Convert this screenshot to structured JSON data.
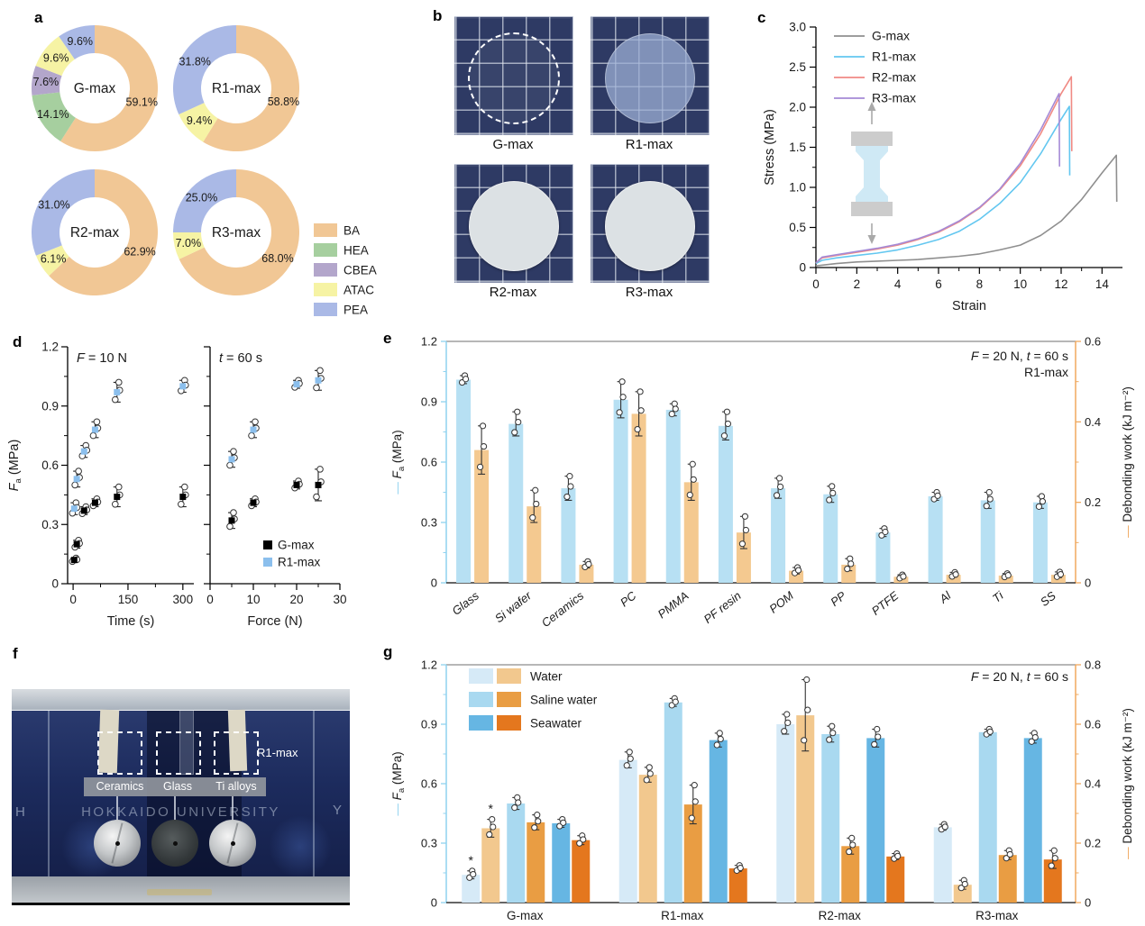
{
  "panels": {
    "a": {
      "label": "a"
    },
    "b": {
      "label": "b",
      "photos": [
        {
          "name": "G-max",
          "disc": "dashed"
        },
        {
          "name": "R1-max",
          "disc": "translucent"
        },
        {
          "name": "R2-max",
          "disc": "opaque"
        },
        {
          "name": "R3-max",
          "disc": "opaque"
        }
      ]
    },
    "c": {
      "label": "c"
    },
    "d": {
      "label": "d"
    },
    "e": {
      "label": "e"
    },
    "f": {
      "label": "f",
      "annotation": "R1-max",
      "substrate_labels": [
        "Ceramics",
        "Glass",
        "Ti alloys"
      ],
      "watermark": "HOKKAIDO UNIVERSITY",
      "edge_left": "H",
      "edge_right": "Y"
    },
    "g": {
      "label": "g"
    }
  },
  "chart_data": [
    {
      "id": "a",
      "type": "pie",
      "style": "donut",
      "legend": [
        {
          "label": "BA",
          "color": "#f1c795"
        },
        {
          "label": "HEA",
          "color": "#a6cf9f"
        },
        {
          "label": "CBEA",
          "color": "#b3a6cb"
        },
        {
          "label": "ATAC",
          "color": "#f6f3a4"
        },
        {
          "label": "PEA",
          "color": "#aab9e6"
        }
      ],
      "donuts": [
        {
          "name": "G-max",
          "slices": [
            {
              "key": "BA",
              "pct": 59.1
            },
            {
              "key": "HEA",
              "pct": 14.1
            },
            {
              "key": "CBEA",
              "pct": 7.6
            },
            {
              "key": "ATAC",
              "pct": 9.6
            },
            {
              "key": "PEA",
              "pct": 9.6
            }
          ]
        },
        {
          "name": "R1-max",
          "slices": [
            {
              "key": "BA",
              "pct": 58.8
            },
            {
              "key": "ATAC",
              "pct": 9.4
            },
            {
              "key": "PEA",
              "pct": 31.8
            }
          ]
        },
        {
          "name": "R2-max",
          "slices": [
            {
              "key": "BA",
              "pct": 62.9
            },
            {
              "key": "ATAC",
              "pct": 6.1
            },
            {
              "key": "PEA",
              "pct": 31.0
            }
          ]
        },
        {
          "name": "R3-max",
          "slices": [
            {
              "key": "BA",
              "pct": 68.0
            },
            {
              "key": "ATAC",
              "pct": 7.0
            },
            {
              "key": "PEA",
              "pct": 25.0
            }
          ]
        }
      ]
    },
    {
      "id": "c",
      "type": "line",
      "xlabel": "Strain",
      "ylabel": "Stress (MPa)",
      "xlim": [
        0,
        15
      ],
      "ylim": [
        0,
        3
      ],
      "xticks": [
        0,
        2,
        4,
        6,
        8,
        10,
        12,
        14
      ],
      "yticks": [
        0,
        0.5,
        1.0,
        1.5,
        2.0,
        2.5,
        3.0
      ],
      "series": [
        {
          "name": "G-max",
          "color": "#8f8f8f",
          "points": [
            [
              0,
              0.02
            ],
            [
              1,
              0.05
            ],
            [
              2,
              0.07
            ],
            [
              3,
              0.08
            ],
            [
              4,
              0.09
            ],
            [
              5,
              0.1
            ],
            [
              6,
              0.12
            ],
            [
              7,
              0.14
            ],
            [
              8,
              0.17
            ],
            [
              9,
              0.22
            ],
            [
              10,
              0.28
            ],
            [
              11,
              0.4
            ],
            [
              12,
              0.58
            ],
            [
              13,
              0.85
            ],
            [
              14,
              1.18
            ],
            [
              14.7,
              1.4
            ],
            [
              14.72,
              0.82
            ]
          ]
        },
        {
          "name": "R1-max",
          "color": "#63c7f0",
          "points": [
            [
              0,
              0.05
            ],
            [
              0.3,
              0.09
            ],
            [
              1,
              0.12
            ],
            [
              2,
              0.15
            ],
            [
              3,
              0.18
            ],
            [
              4,
              0.22
            ],
            [
              5,
              0.28
            ],
            [
              6,
              0.35
            ],
            [
              7,
              0.45
            ],
            [
              8,
              0.6
            ],
            [
              9,
              0.8
            ],
            [
              10,
              1.06
            ],
            [
              11,
              1.42
            ],
            [
              12,
              1.85
            ],
            [
              12.4,
              2.01
            ],
            [
              12.42,
              1.15
            ]
          ]
        },
        {
          "name": "R2-max",
          "color": "#f08a84",
          "points": [
            [
              0,
              0.06
            ],
            [
              0.3,
              0.12
            ],
            [
              1,
              0.15
            ],
            [
              2,
              0.19
            ],
            [
              3,
              0.23
            ],
            [
              4,
              0.28
            ],
            [
              5,
              0.35
            ],
            [
              6,
              0.44
            ],
            [
              7,
              0.57
            ],
            [
              8,
              0.74
            ],
            [
              9,
              0.97
            ],
            [
              10,
              1.27
            ],
            [
              11,
              1.67
            ],
            [
              12,
              2.17
            ],
            [
              12.5,
              2.38
            ],
            [
              12.52,
              1.45
            ]
          ]
        },
        {
          "name": "R3-max",
          "color": "#a58ad6",
          "points": [
            [
              0,
              0.06
            ],
            [
              0.3,
              0.13
            ],
            [
              1,
              0.16
            ],
            [
              2,
              0.2
            ],
            [
              3,
              0.24
            ],
            [
              4,
              0.29
            ],
            [
              5,
              0.36
            ],
            [
              6,
              0.45
            ],
            [
              7,
              0.58
            ],
            [
              8,
              0.75
            ],
            [
              9,
              0.98
            ],
            [
              10,
              1.3
            ],
            [
              11,
              1.72
            ],
            [
              11.9,
              2.17
            ],
            [
              11.92,
              1.26
            ]
          ]
        }
      ]
    },
    {
      "id": "d",
      "type": "scatter",
      "ylabel": "Fa (MPa)",
      "ylim": [
        0,
        1.2
      ],
      "yticks": [
        0,
        0.3,
        0.6,
        0.9,
        1.2
      ],
      "legend": [
        {
          "name": "G-max",
          "color": "#000000"
        },
        {
          "name": "R1-max",
          "color": "#8bbfed"
        }
      ],
      "subplots": [
        {
          "annotation": "F = 10 N",
          "xlabel": "Time (s)",
          "xlim": [
            -15,
            330
          ],
          "xticks": [
            0,
            150,
            300
          ],
          "series": [
            {
              "name": "G-max",
              "color": "#000000",
              "points": [
                {
                  "x": 3,
                  "y": 0.12,
                  "e": 0.01
                },
                {
                  "x": 10,
                  "y": 0.2,
                  "e": 0.02
                },
                {
                  "x": 30,
                  "y": 0.37,
                  "e": 0.02
                },
                {
                  "x": 60,
                  "y": 0.41,
                  "e": 0.02
                },
                {
                  "x": 120,
                  "y": 0.44,
                  "e": 0.05
                },
                {
                  "x": 300,
                  "y": 0.44,
                  "e": 0.05
                }
              ]
            },
            {
              "name": "R1-max",
              "color": "#8bbfed",
              "points": [
                {
                  "x": 3,
                  "y": 0.38,
                  "e": 0.03
                },
                {
                  "x": 10,
                  "y": 0.53,
                  "e": 0.04
                },
                {
                  "x": 30,
                  "y": 0.67,
                  "e": 0.03
                },
                {
                  "x": 60,
                  "y": 0.78,
                  "e": 0.04
                },
                {
                  "x": 120,
                  "y": 0.97,
                  "e": 0.05
                },
                {
                  "x": 300,
                  "y": 1.0,
                  "e": 0.03
                }
              ]
            }
          ]
        },
        {
          "annotation": "t = 60 s",
          "xlabel": "Force (N)",
          "xlim": [
            0,
            30
          ],
          "xticks": [
            0,
            10,
            20,
            30
          ],
          "series": [
            {
              "name": "G-max",
              "color": "#000000",
              "points": [
                {
                  "x": 5,
                  "y": 0.32,
                  "e": 0.04
                },
                {
                  "x": 10,
                  "y": 0.41,
                  "e": 0.02
                },
                {
                  "x": 20,
                  "y": 0.5,
                  "e": 0.02
                },
                {
                  "x": 25,
                  "y": 0.5,
                  "e": 0.08
                }
              ]
            },
            {
              "name": "R1-max",
              "color": "#8bbfed",
              "points": [
                {
                  "x": 5,
                  "y": 0.63,
                  "e": 0.04
                },
                {
                  "x": 10,
                  "y": 0.78,
                  "e": 0.04
                },
                {
                  "x": 20,
                  "y": 1.01,
                  "e": 0.02
                },
                {
                  "x": 25,
                  "y": 1.03,
                  "e": 0.05
                }
              ]
            }
          ]
        }
      ]
    },
    {
      "id": "e",
      "type": "bar",
      "annotation": "F = 20 N, t = 60 s",
      "annotation2": "R1-max",
      "ylabel_left": "Fa (MPa)",
      "ylabel_right": "Debonding work (kJ m⁻²)",
      "ylim_left": [
        0,
        1.2
      ],
      "yticks_left": [
        0,
        0.3,
        0.6,
        0.9,
        1.2
      ],
      "ylim_right": [
        0,
        0.6
      ],
      "yticks_right": [
        0,
        0.2,
        0.4,
        0.6
      ],
      "colors": {
        "fa": "#b7e0f3",
        "dw": "#f4c990",
        "left_axis": "#8fd2ef",
        "right_axis": "#f0a95f"
      },
      "categories": [
        "Glass",
        "Si wafer",
        "Ceramics",
        "PC",
        "PMMA",
        "PF resin",
        "POM",
        "PP",
        "PTFE",
        "Al",
        "Ti",
        "SS"
      ],
      "fa": [
        1.01,
        0.79,
        0.47,
        0.91,
        0.86,
        0.78,
        0.47,
        0.44,
        0.25,
        0.43,
        0.41,
        0.4
      ],
      "fa_err": [
        0.02,
        0.06,
        0.06,
        0.09,
        0.03,
        0.07,
        0.05,
        0.04,
        0.02,
        0.02,
        0.04,
        0.03
      ],
      "dw": [
        0.33,
        0.19,
        0.045,
        0.42,
        0.25,
        0.125,
        0.03,
        0.045,
        0.015,
        0.02,
        0.018,
        0.02
      ],
      "dw_err": [
        0.06,
        0.04,
        0.008,
        0.055,
        0.045,
        0.04,
        0.008,
        0.015,
        0.005,
        0.006,
        0.005,
        0.007
      ]
    },
    {
      "id": "g",
      "type": "bar",
      "annotation": "F = 20 N, t = 60 s",
      "ylabel_left": "Fa (MPa)",
      "ylabel_right": "Debonding work (kJ m⁻²)",
      "ylim_left": [
        0,
        1.2
      ],
      "yticks_left": [
        0,
        0.3,
        0.6,
        0.9,
        1.2
      ],
      "ylim_right": [
        0,
        0.8
      ],
      "yticks_right": [
        0,
        0.2,
        0.4,
        0.6,
        0.8
      ],
      "colors": {
        "left_axis": "#8fd2ef",
        "right_axis": "#f0a95f"
      },
      "conditions": [
        {
          "name": "Water",
          "fa_color": "#d6eaf7",
          "dw_color": "#f2c88e"
        },
        {
          "name": "Saline water",
          "fa_color": "#a9d9f0",
          "dw_color": "#e99d43"
        },
        {
          "name": "Seawater",
          "fa_color": "#66b6e3",
          "dw_color": "#e4771e"
        }
      ],
      "groups": [
        "G-max",
        "R1-max",
        "R2-max",
        "R3-max"
      ],
      "values": [
        {
          "group": "G-max",
          "fa": [
            0.14,
            0.5,
            0.4
          ],
          "fa_err": [
            0.02,
            0.03,
            0.02
          ],
          "dw": [
            0.25,
            0.27,
            0.21
          ],
          "dw_err": [
            0.03,
            0.025,
            0.015
          ],
          "star": [
            true,
            false,
            false
          ]
        },
        {
          "group": "R1-max",
          "fa": [
            0.72,
            1.01,
            0.82
          ],
          "fa_err": [
            0.04,
            0.02,
            0.035
          ],
          "dw": [
            0.43,
            0.33,
            0.115
          ],
          "dw_err": [
            0.025,
            0.065,
            0.01
          ],
          "star": [
            false,
            false,
            false
          ]
        },
        {
          "group": "R2-max",
          "fa": [
            0.9,
            0.85,
            0.83
          ],
          "fa_err": [
            0.05,
            0.04,
            0.045
          ],
          "dw": [
            0.63,
            0.19,
            0.155
          ],
          "dw_err": [
            0.12,
            0.027,
            0.01
          ],
          "star": [
            false,
            false,
            false
          ]
        },
        {
          "group": "R3-max",
          "fa": [
            0.38,
            0.86,
            0.83
          ],
          "fa_err": [
            0.015,
            0.015,
            0.025
          ],
          "dw": [
            0.06,
            0.16,
            0.145
          ],
          "dw_err": [
            0.015,
            0.015,
            0.03
          ],
          "star": [
            false,
            false,
            false
          ]
        }
      ]
    }
  ]
}
